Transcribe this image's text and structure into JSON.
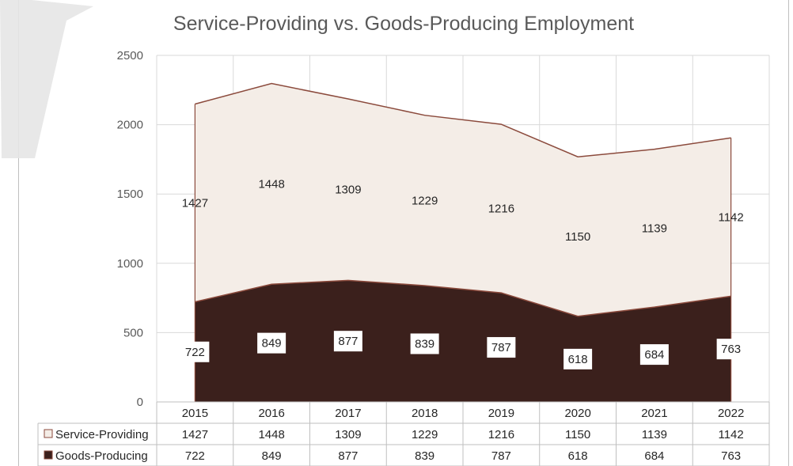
{
  "chart_data": {
    "type": "area",
    "stacked": true,
    "title": "Service-Providing vs. Goods-Producing Employment",
    "categories": [
      "2015",
      "2016",
      "2017",
      "2018",
      "2019",
      "2020",
      "2021",
      "2022"
    ],
    "series": [
      {
        "name": "Service-Providing",
        "values": [
          1427,
          1448,
          1309,
          1229,
          1216,
          1150,
          1139,
          1142
        ],
        "color": "#f4ede7",
        "line": "#8b4a3c"
      },
      {
        "name": "Goods-Producing",
        "values": [
          722,
          849,
          877,
          839,
          787,
          618,
          684,
          763
        ],
        "color": "#3b201c",
        "line": "#8b4a3c"
      }
    ],
    "ylim": [
      0,
      2500
    ],
    "yticks": [
      0,
      500,
      1000,
      1500,
      2000,
      2500
    ],
    "grid": true,
    "legend": "data table"
  }
}
